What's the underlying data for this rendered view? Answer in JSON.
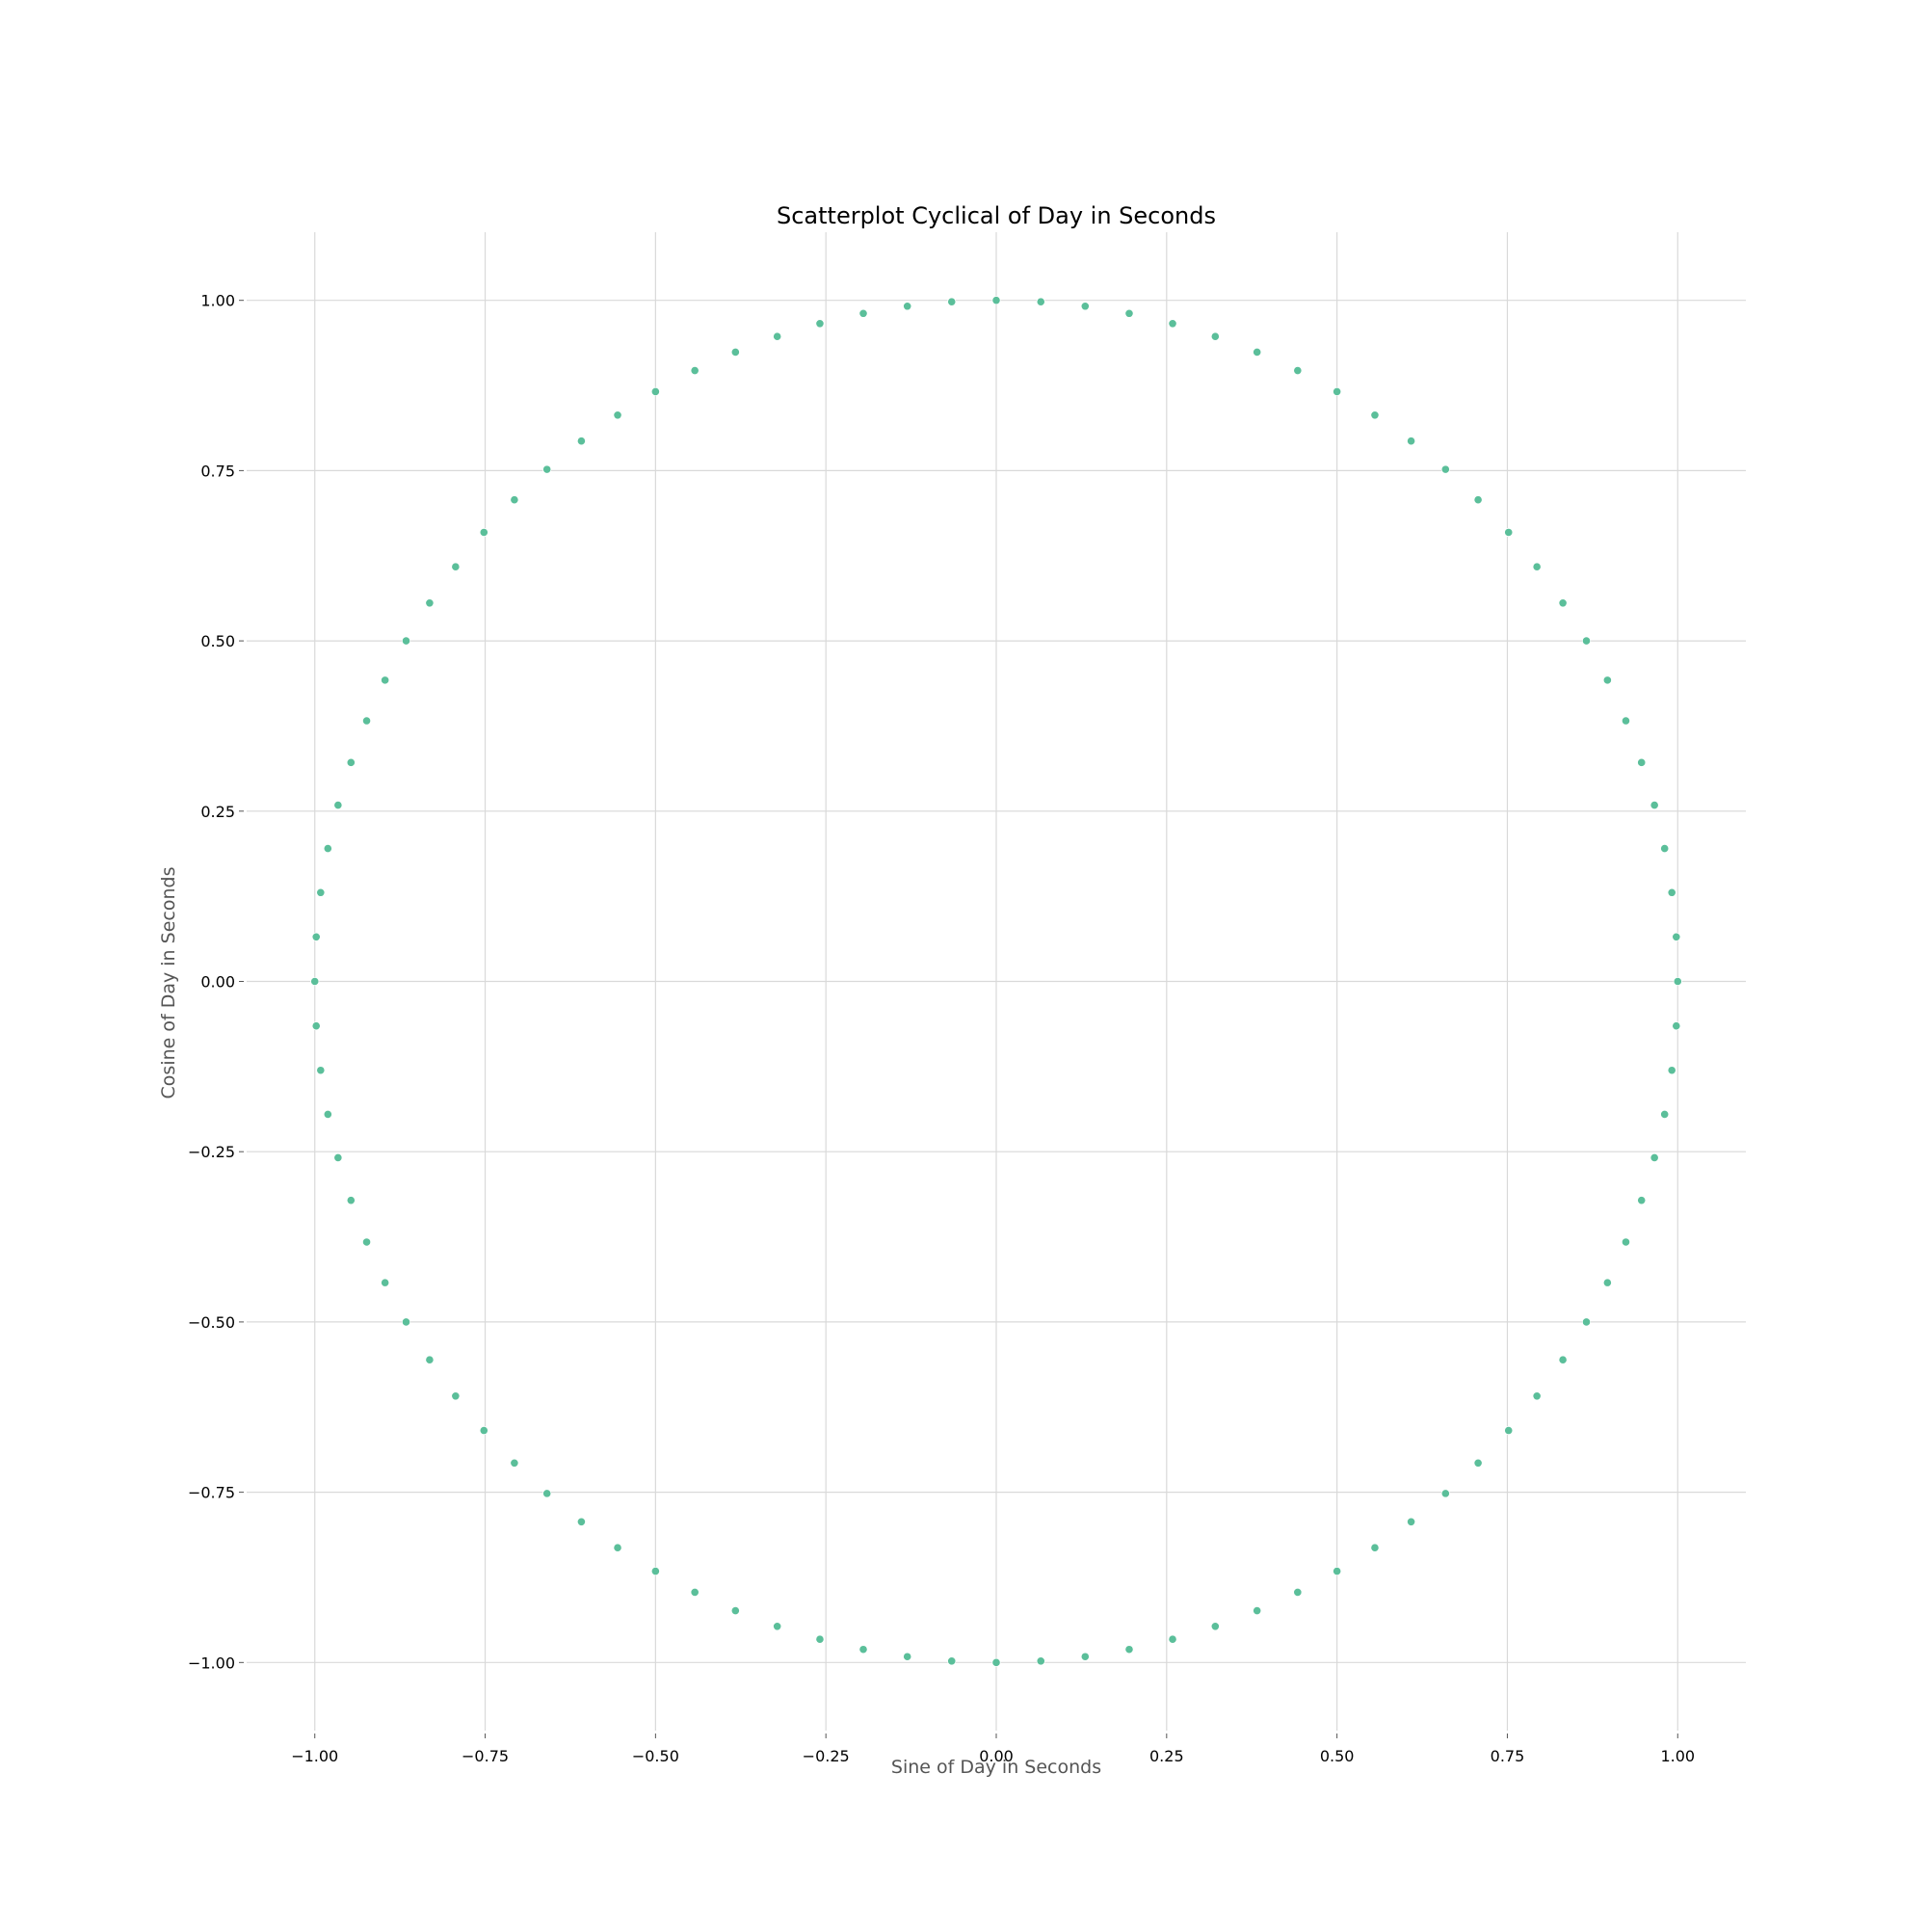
{
  "chart_data": {
    "type": "scatter",
    "title": "Scatterplot Cyclical of Day in Seconds",
    "xlabel": "Sine of Day in Seconds",
    "ylabel": "Cosine of Day in Seconds",
    "xlim": [
      -1.1,
      1.1
    ],
    "ylim": [
      -1.1,
      1.1
    ],
    "x_ticks": [
      -1.0,
      -0.75,
      -0.5,
      -0.25,
      0.0,
      0.25,
      0.5,
      0.75,
      1.0
    ],
    "x_tick_labels": [
      "−1.00",
      "−0.75",
      "−0.50",
      "−0.25",
      "0.00",
      "0.25",
      "0.50",
      "0.75",
      "1.00"
    ],
    "y_ticks": [
      1.0,
      0.75,
      0.5,
      0.25,
      0.0,
      -0.25,
      -0.5,
      -0.75,
      -1.0
    ],
    "y_tick_labels": [
      "1.00",
      "0.75",
      "0.50",
      "0.25",
      "0.00",
      "−0.25",
      "−0.50",
      "−0.75",
      "−1.00"
    ],
    "grid": true,
    "legend": "none",
    "point_color": "#5bbf9a",
    "point_edge_color": "#ffffff",
    "series": [
      {
        "description_only_values": "points lie on the unit circle: x = sin(2πt/86400), y = cos(2πt/86400)",
        "x": [
          0.0,
          0.0654,
          0.1305,
          0.1951,
          0.2588,
          0.3214,
          0.3827,
          0.4423,
          0.5,
          0.5556,
          0.6088,
          0.6593,
          0.7071,
          0.7518,
          0.7934,
          0.8315,
          0.866,
          0.8969,
          0.9239,
          0.9469,
          0.9659,
          0.9808,
          0.9914,
          0.9979,
          1.0,
          0.9979,
          0.9914,
          0.9808,
          0.9659,
          0.9469,
          0.9239,
          0.8969,
          0.866,
          0.8315,
          0.7934,
          0.7518,
          0.7071,
          0.6593,
          0.6088,
          0.5556,
          0.5,
          0.4423,
          0.3827,
          0.3214,
          0.2588,
          0.1951,
          0.1305,
          0.0654,
          0.0,
          -0.0654,
          -0.1305,
          -0.1951,
          -0.2588,
          -0.3214,
          -0.3827,
          -0.4423,
          -0.5,
          -0.5556,
          -0.6088,
          -0.6593,
          -0.7071,
          -0.7518,
          -0.7934,
          -0.8315,
          -0.866,
          -0.8969,
          -0.9239,
          -0.9469,
          -0.9659,
          -0.9808,
          -0.9914,
          -0.9979,
          -1.0,
          -0.9979,
          -0.9914,
          -0.9808,
          -0.9659,
          -0.9469,
          -0.9239,
          -0.8969,
          -0.866,
          -0.8315,
          -0.7934,
          -0.7518,
          -0.7071,
          -0.6593,
          -0.6088,
          -0.5556,
          -0.5,
          -0.4423,
          -0.3827,
          -0.3214,
          -0.2588,
          -0.1951,
          -0.1305,
          -0.0654
        ],
        "y": [
          1.0,
          0.9979,
          0.9914,
          0.9808,
          0.9659,
          0.9469,
          0.9239,
          0.8969,
          0.866,
          0.8315,
          0.7934,
          0.7518,
          0.7071,
          0.6593,
          0.6088,
          0.5556,
          0.5,
          0.4423,
          0.3827,
          0.3214,
          0.2588,
          0.1951,
          0.1305,
          0.0654,
          0.0,
          -0.0654,
          -0.1305,
          -0.1951,
          -0.2588,
          -0.3214,
          -0.3827,
          -0.4423,
          -0.5,
          -0.5556,
          -0.6088,
          -0.6593,
          -0.7071,
          -0.7518,
          -0.7934,
          -0.8315,
          -0.866,
          -0.8969,
          -0.9239,
          -0.9469,
          -0.9659,
          -0.9808,
          -0.9914,
          -0.9979,
          -1.0,
          -0.9979,
          -0.9914,
          -0.9808,
          -0.9659,
          -0.9469,
          -0.9239,
          -0.8969,
          -0.866,
          -0.8315,
          -0.7934,
          -0.7518,
          -0.7071,
          -0.6593,
          -0.6088,
          -0.5556,
          -0.5,
          -0.4423,
          -0.3827,
          -0.3214,
          -0.2588,
          -0.1951,
          -0.1305,
          -0.0654,
          0.0,
          0.0654,
          0.1305,
          0.1951,
          0.2588,
          0.3214,
          0.3827,
          0.4423,
          0.5,
          0.5556,
          0.6088,
          0.6593,
          0.7071,
          0.7518,
          0.7934,
          0.8315,
          0.866,
          0.8969,
          0.9239,
          0.9469,
          0.9659,
          0.9808,
          0.9914,
          0.9979
        ]
      }
    ]
  }
}
